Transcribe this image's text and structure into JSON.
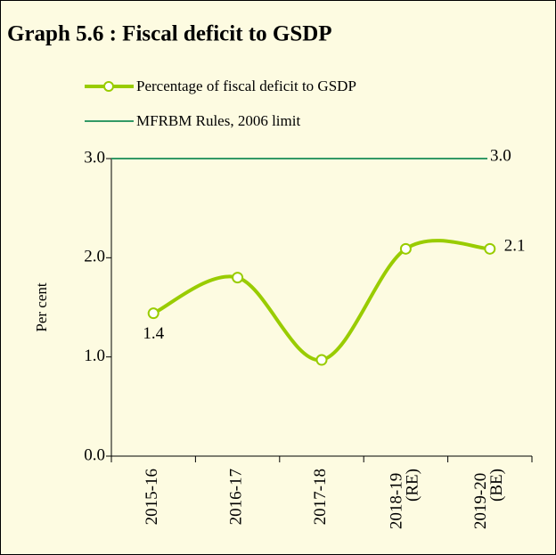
{
  "chart_data": {
    "type": "line",
    "title": "Graph 5.6 : Fiscal deficit to GSDP",
    "y_label": "Per cent",
    "categories": [
      "2015-16",
      "2016-17",
      "2017-18",
      "2018-19 (RE)",
      "2019-20 (BE)"
    ],
    "series": [
      {
        "name": "Percentage of fiscal deficit to GSDP",
        "color": "#99cc00",
        "values": [
          1.44,
          1.8,
          0.97,
          2.09,
          2.09
        ],
        "value_labels": [
          "1.4",
          null,
          null,
          null,
          "2.1"
        ]
      }
    ],
    "reference_line": {
      "name": "MFRBM Rules, 2006 limit",
      "color": "#339966",
      "value": 3,
      "value_label": "3.0"
    },
    "ylim": [
      0,
      3
    ],
    "yticks": [
      {
        "value": 0,
        "label": "0.0"
      },
      {
        "value": 1,
        "label": "1.0"
      },
      {
        "value": 2,
        "label": "2.0"
      },
      {
        "value": 3,
        "label": "3.0"
      }
    ]
  }
}
